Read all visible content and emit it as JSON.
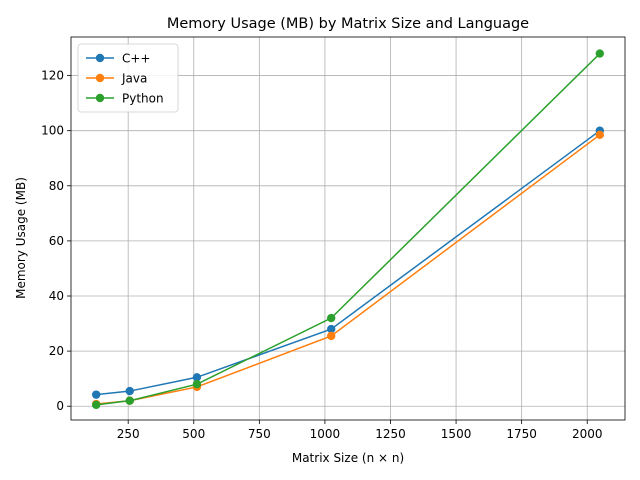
{
  "chart_data": {
    "type": "line",
    "title": "Memory Usage (MB) by Matrix Size and Language",
    "xlabel": "Matrix Size (n × n)",
    "ylabel": "Memory Usage (MB)",
    "x": [
      128,
      256,
      512,
      1024,
      2048
    ],
    "xlim": [
      32,
      2144
    ],
    "ylim": [
      -5,
      134
    ],
    "xticks": [
      250,
      500,
      750,
      1000,
      1250,
      1500,
      1750,
      2000
    ],
    "yticks": [
      0,
      20,
      40,
      60,
      80,
      100,
      120
    ],
    "grid": true,
    "legend": "top-left",
    "series": [
      {
        "name": "C++",
        "color": "#1f77b4",
        "values": [
          4.2,
          5.5,
          10.5,
          28,
          100
        ]
      },
      {
        "name": "Java",
        "color": "#ff7f0e",
        "values": [
          0.8,
          2.0,
          7.0,
          25.5,
          98.5
        ]
      },
      {
        "name": "Python",
        "color": "#2ca02c",
        "values": [
          0.5,
          2.0,
          8.0,
          32,
          128
        ]
      }
    ]
  }
}
